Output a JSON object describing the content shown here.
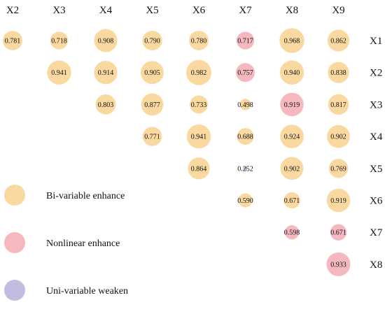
{
  "chart_data": {
    "type": "bubble-matrix",
    "columns": [
      "X2",
      "X3",
      "X4",
      "X5",
      "X6",
      "X7",
      "X8",
      "X9"
    ],
    "rows": [
      "X1",
      "X2",
      "X3",
      "X4",
      "X5",
      "X6",
      "X7",
      "X8"
    ],
    "cells": [
      {
        "row": "X1",
        "col": "X2",
        "value": "0.781",
        "category": "bi"
      },
      {
        "row": "X1",
        "col": "X3",
        "value": "0.718",
        "category": "bi"
      },
      {
        "row": "X1",
        "col": "X4",
        "value": "0.908",
        "category": "bi"
      },
      {
        "row": "X1",
        "col": "X5",
        "value": "0.790",
        "category": "bi"
      },
      {
        "row": "X1",
        "col": "X6",
        "value": "0.780",
        "category": "bi"
      },
      {
        "row": "X1",
        "col": "X7",
        "value": "0.717",
        "category": "nonlinear"
      },
      {
        "row": "X1",
        "col": "X8",
        "value": "0.968",
        "category": "bi"
      },
      {
        "row": "X1",
        "col": "X9",
        "value": "0.862",
        "category": "bi"
      },
      {
        "row": "X2",
        "col": "X3",
        "value": "0.941",
        "category": "bi"
      },
      {
        "row": "X2",
        "col": "X4",
        "value": "0.914",
        "category": "bi"
      },
      {
        "row": "X2",
        "col": "X5",
        "value": "0.905",
        "category": "bi"
      },
      {
        "row": "X2",
        "col": "X6",
        "value": "0.982",
        "category": "bi"
      },
      {
        "row": "X2",
        "col": "X7",
        "value": "0.757",
        "category": "nonlinear"
      },
      {
        "row": "X2",
        "col": "X8",
        "value": "0.940",
        "category": "bi"
      },
      {
        "row": "X2",
        "col": "X9",
        "value": "0.838",
        "category": "bi"
      },
      {
        "row": "X3",
        "col": "X4",
        "value": "0.803",
        "category": "bi"
      },
      {
        "row": "X3",
        "col": "X5",
        "value": "0.877",
        "category": "bi"
      },
      {
        "row": "X3",
        "col": "X6",
        "value": "0.733",
        "category": "bi"
      },
      {
        "row": "X3",
        "col": "X7",
        "value": "0.498",
        "category": "bi"
      },
      {
        "row": "X3",
        "col": "X8",
        "value": "0.919",
        "category": "nonlinear"
      },
      {
        "row": "X3",
        "col": "X9",
        "value": "0.817",
        "category": "bi"
      },
      {
        "row": "X4",
        "col": "X5",
        "value": "0.771",
        "category": "bi"
      },
      {
        "row": "X4",
        "col": "X6",
        "value": "0.941",
        "category": "bi"
      },
      {
        "row": "X4",
        "col": "X7",
        "value": "0.688",
        "category": "bi"
      },
      {
        "row": "X4",
        "col": "X8",
        "value": "0.924",
        "category": "bi"
      },
      {
        "row": "X4",
        "col": "X9",
        "value": "0.902",
        "category": "bi"
      },
      {
        "row": "X5",
        "col": "X6",
        "value": "0.864",
        "category": "bi"
      },
      {
        "row": "X5",
        "col": "X7",
        "value": "0.252",
        "category": "weaken"
      },
      {
        "row": "X5",
        "col": "X8",
        "value": "0.902",
        "category": "bi"
      },
      {
        "row": "X5",
        "col": "X9",
        "value": "0.769",
        "category": "bi"
      },
      {
        "row": "X6",
        "col": "X7",
        "value": "0.590",
        "category": "bi"
      },
      {
        "row": "X6",
        "col": "X8",
        "value": "0.671",
        "category": "bi"
      },
      {
        "row": "X6",
        "col": "X9",
        "value": "0.919",
        "category": "bi"
      },
      {
        "row": "X7",
        "col": "X8",
        "value": "0.598",
        "category": "nonlinear"
      },
      {
        "row": "X7",
        "col": "X9",
        "value": "0.671",
        "category": "nonlinear"
      },
      {
        "row": "X8",
        "col": "X9",
        "value": "0.933",
        "category": "nonlinear"
      }
    ],
    "legend": [
      {
        "key": "bi",
        "label": "Bi-variable enhance",
        "color": "#FAD9A1"
      },
      {
        "key": "nonlinear",
        "label": "Nonlinear enhance",
        "color": "#F4B8BE"
      },
      {
        "key": "weaken",
        "label": "Uni-variable weaken",
        "color": "#C4BCE0"
      }
    ],
    "legend_placement": "bottom-left",
    "size_encodes": "value"
  }
}
